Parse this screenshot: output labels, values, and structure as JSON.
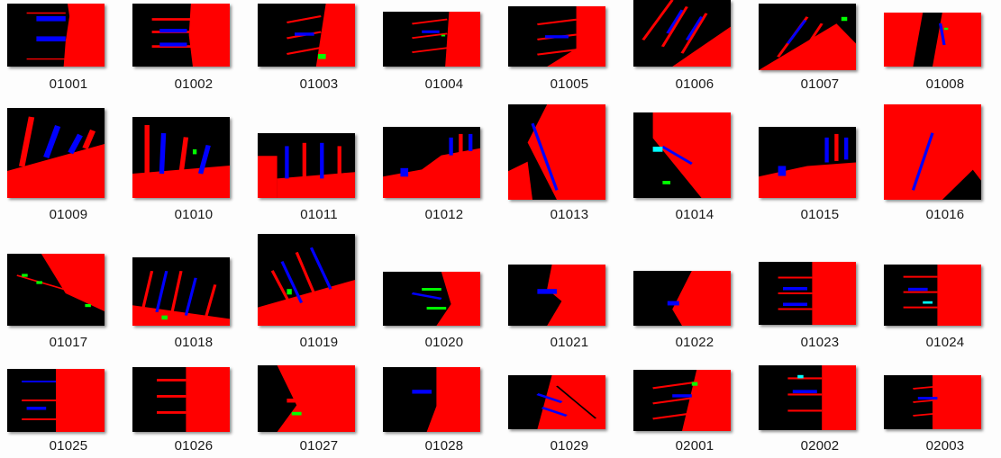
{
  "colors": {
    "background": "#fdfdfd",
    "land": "#ff0000",
    "water": "#000000",
    "ship": "#0000ff",
    "pier": "#ff0000",
    "marker_green": "#00ff00",
    "marker_cyan": "#00ffff"
  },
  "files": [
    {
      "name": "01001"
    },
    {
      "name": "01002"
    },
    {
      "name": "01003"
    },
    {
      "name": "01004"
    },
    {
      "name": "01005"
    },
    {
      "name": "01006"
    },
    {
      "name": "01007"
    },
    {
      "name": "01008"
    },
    {
      "name": "01009"
    },
    {
      "name": "01010"
    },
    {
      "name": "01011"
    },
    {
      "name": "01012"
    },
    {
      "name": "01013"
    },
    {
      "name": "01014"
    },
    {
      "name": "01015"
    },
    {
      "name": "01016"
    },
    {
      "name": "01017"
    },
    {
      "name": "01018"
    },
    {
      "name": "01019"
    },
    {
      "name": "01020"
    },
    {
      "name": "01021"
    },
    {
      "name": "01022"
    },
    {
      "name": "01023"
    },
    {
      "name": "01024"
    },
    {
      "name": "01025"
    },
    {
      "name": "01026"
    },
    {
      "name": "01027"
    },
    {
      "name": "01028"
    },
    {
      "name": "01029"
    },
    {
      "name": "02001"
    },
    {
      "name": "02002"
    },
    {
      "name": "02003"
    }
  ]
}
